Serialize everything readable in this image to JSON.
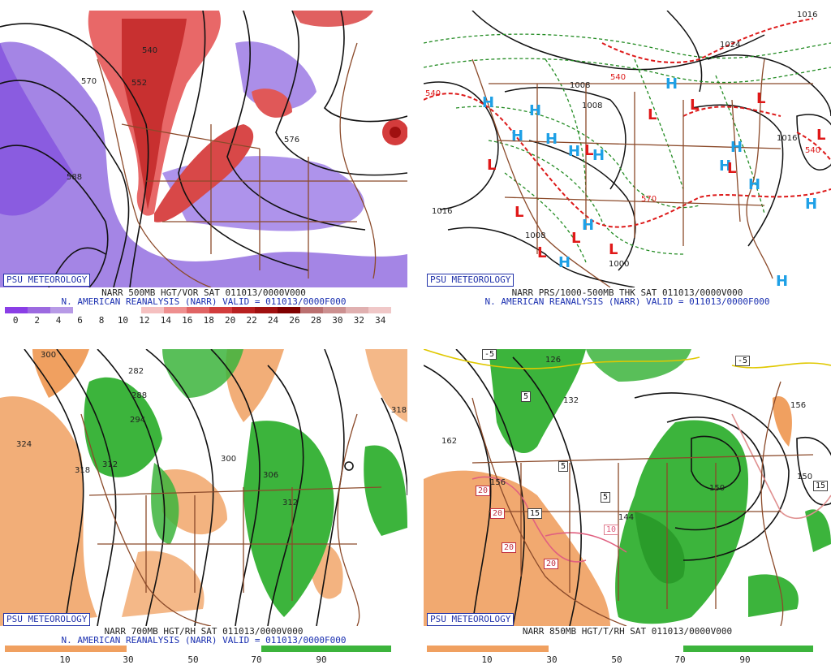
{
  "panels": {
    "p1": {
      "caption_line1": "NARR 500MB HGT/VOR SAT 011013/0000V000",
      "caption_line2": "N. AMERICAN REANALYSIS (NARR) VALID = 011013/0000F000",
      "colorbar_labels": [
        "0",
        "2",
        "4",
        "6",
        "8",
        "10",
        "12",
        "14",
        "16",
        "18",
        "20",
        "22",
        "24",
        "26",
        "28",
        "30",
        "32",
        "34"
      ],
      "colorbar_colors": [
        "#8a3ee6",
        "#9c6ae0",
        "#b79ae6",
        "#ffffff",
        "#ffffff",
        "#ffffff",
        "#f5c0c0",
        "#ee8f8f",
        "#e06464",
        "#d23c3c",
        "#b82020",
        "#a01010",
        "#800000",
        "#bb7070",
        "#cc9090",
        "#e0b0b0",
        "#f0c8c8"
      ],
      "contour_labels": [
        "540",
        "552",
        "570",
        "576",
        "588"
      ],
      "logo": "PSU METEOROLOGY"
    },
    "p2": {
      "caption_line1": "NARR PRS/1000-500MB THK SAT 011013/0000V000",
      "caption_line2": "N. AMERICAN REANALYSIS (NARR) VALID = 011013/0000F000",
      "isobar_labels": [
        "1008",
        "1016",
        "1024",
        "1016",
        "1008",
        "1000",
        "1008",
        "1016"
      ],
      "thickness_labels": [
        "540",
        "540",
        "570",
        "540"
      ],
      "logo": "PSU METEOROLOGY",
      "highs": [
        "H",
        "H",
        "H",
        "H",
        "H",
        "H",
        "H",
        "H",
        "H",
        "H",
        "H",
        "H",
        "H",
        "H"
      ],
      "lows": [
        "L",
        "L",
        "L",
        "L",
        "L",
        "L",
        "L",
        "L",
        "L",
        "L",
        "L"
      ]
    },
    "p3": {
      "caption_line1": "NARR 700MB HGT/RH SAT 011013/0000V000",
      "caption_line2": "N. AMERICAN REANALYSIS (NARR) VALID = 011013/0000F000",
      "colorbar_labels": [
        "10",
        "30",
        "50",
        "70",
        "90"
      ],
      "contour_labels": [
        "300",
        "282",
        "288",
        "294",
        "312",
        "318",
        "324",
        "300",
        "306",
        "312",
        "318"
      ],
      "logo": "PSU METEOROLOGY"
    },
    "p4": {
      "caption_line1": "NARR 850MB HGT/T/RH SAT 011013/0000V000",
      "colorbar_labels": [
        "10",
        "30",
        "50",
        "70",
        "90"
      ],
      "height_labels": [
        "162",
        "132",
        "126",
        "156",
        "150",
        "144",
        "156",
        "150"
      ],
      "temp_labels": [
        "-5",
        "-5",
        "5",
        "5",
        "5",
        "20",
        "20",
        "20",
        "20",
        "15",
        "10",
        "15"
      ],
      "logo": "PSU METEOROLOGY"
    }
  },
  "colors": {
    "orange_dry": "#f0a060",
    "green_moist": "#3cb43c",
    "vort_purple": "#8a5ce0",
    "vort_red": "#e04848",
    "border_brown": "#8b4a2a",
    "high_blue": "#1ea0e6",
    "low_red": "#e01818"
  }
}
